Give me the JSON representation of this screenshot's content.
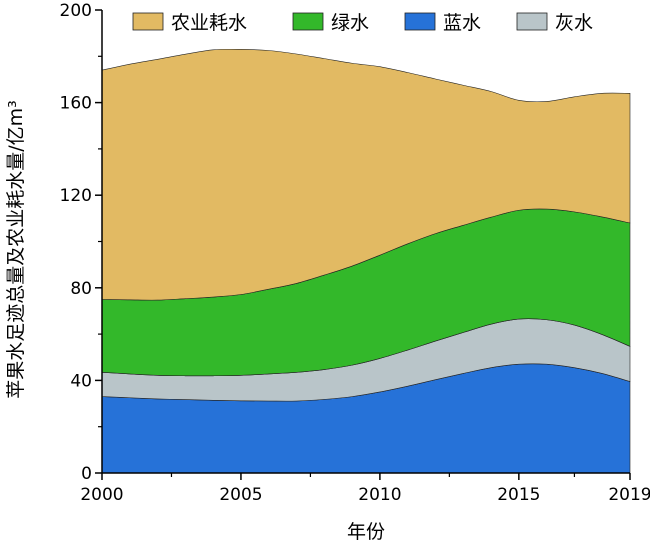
{
  "chart_data": {
    "type": "area",
    "stacked": true,
    "xlabel": "年份",
    "ylabel": "苹果水足迹总量及农业耗水量/亿m³",
    "xlim": [
      2000,
      2019
    ],
    "ylim": [
      0,
      200
    ],
    "xticks": [
      2000,
      2005,
      2010,
      2015,
      2019
    ],
    "yticks": [
      0,
      40,
      80,
      120,
      160,
      200
    ],
    "legend_position": "top",
    "grid": false,
    "x": [
      2000,
      2001,
      2002,
      2003,
      2004,
      2005,
      2006,
      2007,
      2008,
      2009,
      2010,
      2011,
      2012,
      2013,
      2014,
      2015,
      2016,
      2017,
      2018,
      2019
    ],
    "series": [
      {
        "name": "蓝水",
        "color": "#2672d8",
        "values": [
          33,
          32.5,
          32,
          31.7,
          31.4,
          31.2,
          31.1,
          31.1,
          31.8,
          33,
          35,
          37.5,
          40.3,
          43,
          45.5,
          47,
          47,
          45.5,
          43,
          39.5
        ]
      },
      {
        "name": "灰水",
        "color": "#b9c5c9",
        "values": [
          10.5,
          10.3,
          10.2,
          10.3,
          10.6,
          11.0,
          11.7,
          12.4,
          12.9,
          13.6,
          14.5,
          15.6,
          16.7,
          17.7,
          18.8,
          19.5,
          19.2,
          18.4,
          16.8,
          15.2
        ]
      },
      {
        "name": "绿水",
        "color": "#33b82a",
        "values": [
          31.5,
          32.0,
          32.5,
          33.3,
          34.0,
          34.9,
          36.6,
          38.4,
          40.8,
          42.8,
          44.6,
          45.9,
          46.4,
          46.3,
          46.2,
          47.0,
          47.8,
          48.9,
          50.8,
          53.3
        ]
      },
      {
        "name": "农业耗水",
        "color": "#e2ba63",
        "values": [
          99,
          101.8,
          104,
          105.6,
          106.8,
          105.9,
          103.1,
          99.1,
          93.5,
          87.6,
          81.4,
          74.0,
          66.8,
          60.5,
          54.3,
          47.5,
          46.5,
          49.7,
          53.4,
          56.0
        ]
      }
    ],
    "legend_order": [
      "农业耗水",
      "绿水",
      "蓝水",
      "灰水"
    ]
  }
}
